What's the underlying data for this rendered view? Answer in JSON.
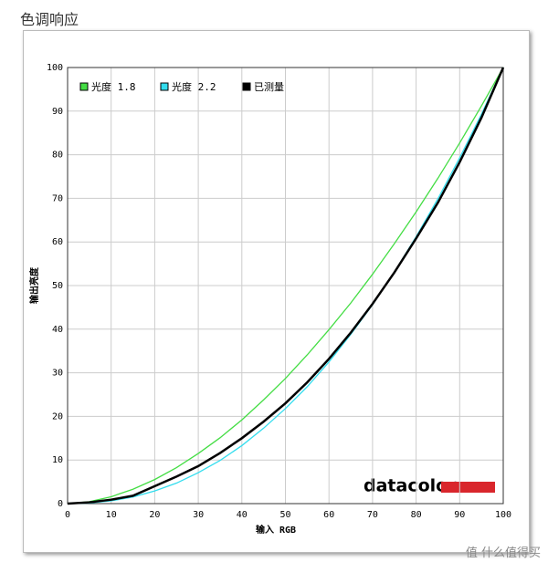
{
  "page_title": "色调响应",
  "watermark": "值 什么值得买",
  "chart_data": {
    "type": "line",
    "x_label": "输入 RGB",
    "y_label": "输出亮度",
    "logo": "datacolor",
    "x": [
      0,
      5,
      10,
      15,
      20,
      25,
      30,
      35,
      40,
      45,
      50,
      55,
      60,
      65,
      70,
      75,
      80,
      85,
      90,
      95,
      100
    ],
    "series": [
      {
        "name": "光度 1.8",
        "color": "#44dd44",
        "values": [
          0,
          0.45,
          1.58,
          3.3,
          5.52,
          8.25,
          11.5,
          15.1,
          19.2,
          23.8,
          28.7,
          34.1,
          39.9,
          46.0,
          52.6,
          59.6,
          66.9,
          74.6,
          82.7,
          91.2,
          100
        ]
      },
      {
        "name": "光度 2.2",
        "color": "#33ddee",
        "values": [
          0,
          0.14,
          0.63,
          1.53,
          2.9,
          4.7,
          7.1,
          9.9,
          13.3,
          17.3,
          21.8,
          26.8,
          32.5,
          38.8,
          45.6,
          53.1,
          61.2,
          69.9,
          79.3,
          89.3,
          100
        ]
      },
      {
        "name": "已测量",
        "color": "#000000",
        "values": [
          0,
          0.3,
          0.9,
          1.8,
          4.0,
          6.2,
          8.6,
          11.6,
          15.0,
          18.8,
          23.0,
          27.8,
          33.2,
          39.2,
          45.8,
          53.0,
          60.8,
          69.0,
          78.3,
          88.5,
          100
        ]
      }
    ],
    "xlim": [
      0,
      100
    ],
    "ylim": [
      0,
      100
    ],
    "xticks": [
      0,
      10,
      20,
      30,
      40,
      50,
      60,
      70,
      80,
      90,
      100
    ],
    "yticks": [
      0,
      10,
      20,
      30,
      40,
      50,
      60,
      70,
      80,
      90,
      100
    ],
    "grid": true,
    "legend": "top-left"
  }
}
